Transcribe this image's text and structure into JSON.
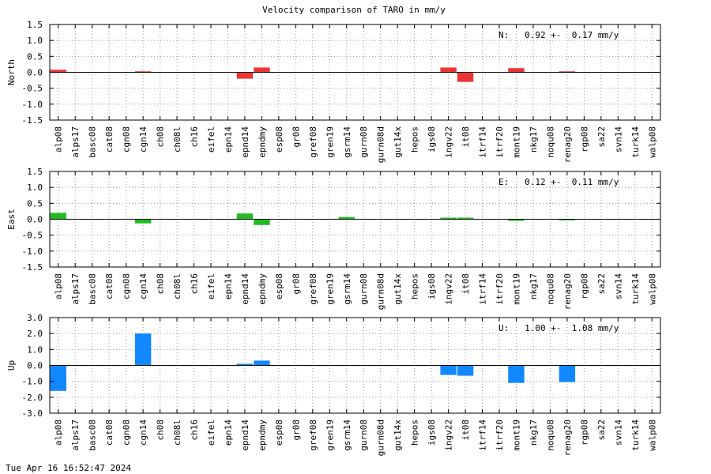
{
  "chart_data": {
    "type": "bar",
    "title": "Velocity comparison of TARO in mm/y",
    "categories": [
      "alp08",
      "alps17",
      "basc08",
      "cat08",
      "cgn08",
      "cgn14",
      "ch08",
      "ch08l",
      "ch16",
      "eifel",
      "epn14",
      "epnd14",
      "epndmy",
      "esp08",
      "gr08",
      "gref08",
      "gren19",
      "gsrm14",
      "gurn08",
      "gurn08d",
      "gut14x",
      "hepos",
      "igs08",
      "ingv22",
      "it08",
      "itrf14",
      "itrf20",
      "mont19",
      "nkg17",
      "noqu08",
      "renag20",
      "rgp08",
      "sa22",
      "svn14",
      "turk14",
      "walp08"
    ],
    "panels": [
      {
        "ylabel": "North",
        "ylim": [
          -1.5,
          1.5
        ],
        "yticks": [
          1.5,
          1.0,
          0.5,
          0.0,
          -0.5,
          -1.0,
          -1.5
        ],
        "color": "#ee3333",
        "annotation": "N:   0.92 +-  0.17 mm/y",
        "values": [
          0.08,
          null,
          null,
          null,
          null,
          0.03,
          null,
          null,
          null,
          null,
          null,
          -0.2,
          0.15,
          null,
          null,
          null,
          null,
          null,
          null,
          null,
          null,
          null,
          null,
          0.15,
          -0.3,
          null,
          null,
          0.13,
          null,
          null,
          0.03,
          null,
          null,
          null,
          null,
          null
        ]
      },
      {
        "ylabel": "East",
        "ylim": [
          -1.5,
          1.5
        ],
        "yticks": [
          1.5,
          1.0,
          0.5,
          0.0,
          -0.5,
          -1.0,
          -1.5
        ],
        "color": "#22bb22",
        "annotation": "E:   0.12 +-  0.11 mm/y",
        "values": [
          0.2,
          null,
          null,
          null,
          null,
          -0.13,
          null,
          null,
          null,
          null,
          null,
          0.18,
          -0.18,
          null,
          null,
          null,
          null,
          0.07,
          null,
          null,
          null,
          null,
          null,
          0.05,
          0.05,
          null,
          null,
          -0.05,
          null,
          null,
          -0.03,
          null,
          null,
          null,
          null,
          null
        ]
      },
      {
        "ylabel": "Up",
        "ylim": [
          -3.0,
          3.0
        ],
        "yticks": [
          3.0,
          2.0,
          1.0,
          0.0,
          -1.0,
          -2.0,
          -3.0
        ],
        "color": "#1188ff",
        "annotation": "U:   1.00 +-  1.08 mm/y",
        "values": [
          -1.6,
          null,
          null,
          null,
          null,
          2.0,
          null,
          null,
          null,
          null,
          null,
          0.1,
          0.3,
          null,
          null,
          null,
          null,
          null,
          null,
          null,
          null,
          null,
          null,
          -0.6,
          -0.65,
          null,
          null,
          -1.1,
          null,
          null,
          -1.05,
          null,
          null,
          null,
          null,
          null
        ]
      }
    ],
    "grid": true
  },
  "footer": {
    "timestamp": "Tue Apr 16 16:52:47 2024"
  }
}
